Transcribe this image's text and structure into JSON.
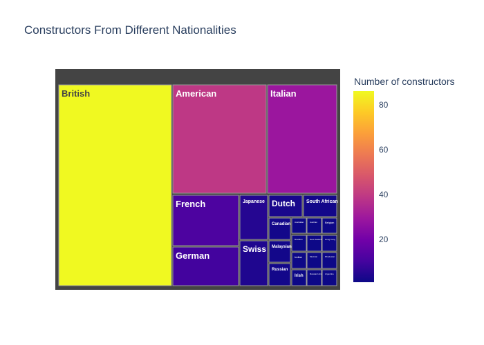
{
  "chart_data": {
    "type": "treemap",
    "title": "Constructors From Different Nationalities",
    "colorbar": {
      "title": "Number of constructors",
      "range": [
        1,
        86
      ],
      "ticks": [
        20,
        40,
        60,
        80
      ],
      "colorscale": "plasma"
    },
    "nodes": [
      {
        "label": "British",
        "value": 86
      },
      {
        "label": "American",
        "value": 39
      },
      {
        "label": "Italian",
        "value": 29
      },
      {
        "label": "French",
        "value": 12
      },
      {
        "label": "German",
        "value": 10
      },
      {
        "label": "Japanese",
        "value": 5
      },
      {
        "label": "Swiss",
        "value": 4
      },
      {
        "label": "Dutch",
        "value": 3
      },
      {
        "label": "South African",
        "value": 2
      },
      {
        "label": "Canadian",
        "value": 2
      },
      {
        "label": "Australian",
        "value": 1
      },
      {
        "label": "Austrian",
        "value": 1
      },
      {
        "label": "Belgian",
        "value": 1
      },
      {
        "label": "Malaysian",
        "value": 2
      },
      {
        "label": "Brazilian",
        "value": 1
      },
      {
        "label": "New Zealander",
        "value": 1
      },
      {
        "label": "Hong Kong",
        "value": 1
      },
      {
        "label": "Indian",
        "value": 1
      },
      {
        "label": "Mexican",
        "value": 1
      },
      {
        "label": "Rhodesian",
        "value": 1
      },
      {
        "label": "Russian",
        "value": 2
      },
      {
        "label": "Irish",
        "value": 1
      },
      {
        "label": "Russian/ American",
        "value": 1
      },
      {
        "label": "Argentine",
        "value": 1
      }
    ]
  }
}
